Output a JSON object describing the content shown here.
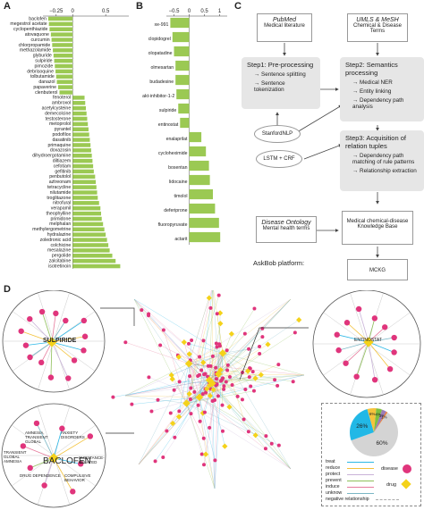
{
  "panels": {
    "a": "A",
    "b": "B",
    "c": "C",
    "d": "D"
  },
  "chart_data": [
    {
      "type": "bar",
      "orientation": "horizontal",
      "xlim": [
        -0.45,
        0.85
      ],
      "ticks": [
        -0.25,
        0,
        0.5
      ],
      "tick_labels": [
        "−0.25",
        "0",
        "0.5"
      ],
      "categories": [
        "baclofen",
        "megestrol acetate",
        "cyclopenthiazide",
        "atovaquone",
        "curcumin",
        "chlorpropamide",
        "methazolamide",
        "glyburide",
        "sulpiride",
        "pimozide",
        "debrisoquine",
        "tolbutamide",
        "danazol",
        "papaverine",
        "clenbuterol",
        "fenoterol",
        "ambroxol",
        "acetylcysteine",
        "demecolcine",
        "testosterone",
        "metoprolol",
        "pyrantel",
        "podofilox",
        "dasatinib",
        "primaquine",
        "doxazosin",
        "dihydroergotamine",
        "diltiazem",
        "cefotiam",
        "gefitinib",
        "penbutolol",
        "aztreonam",
        "tetracycline",
        "nilutamide",
        "troglitazone",
        "nitrofural",
        "verapamil",
        "theophylline",
        "primidone",
        "melphalan",
        "methylergometrine",
        "hydralazine",
        "zoledronic acid",
        "colchicine",
        "mesalazine",
        "pergolide",
        "zalcitabine",
        "isotretinoin"
      ],
      "values": [
        -0.37,
        -0.36,
        -0.35,
        -0.33,
        -0.32,
        -0.31,
        -0.3,
        -0.29,
        -0.28,
        -0.27,
        -0.26,
        -0.25,
        -0.24,
        -0.22,
        -0.2,
        0.18,
        0.19,
        0.2,
        0.21,
        0.22,
        0.23,
        0.24,
        0.25,
        0.26,
        0.27,
        0.28,
        0.29,
        0.3,
        0.31,
        0.32,
        0.34,
        0.35,
        0.36,
        0.37,
        0.38,
        0.4,
        0.42,
        0.43,
        0.44,
        0.46,
        0.48,
        0.5,
        0.52,
        0.54,
        0.56,
        0.6,
        0.65,
        0.72
      ],
      "bar_color": "#9bc953"
    },
    {
      "type": "bar",
      "orientation": "horizontal",
      "xlim": [
        -0.75,
        1.25
      ],
      "ticks": [
        -0.5,
        0,
        0.5,
        1
      ],
      "tick_labels": [
        "−0.5",
        "0",
        "0.5",
        "1"
      ],
      "categories": [
        "xe-991",
        "clopidogrel",
        "olopatadine",
        "olmesartan",
        "budadesine",
        "akt-inhibitor-1-2",
        "sulpiride",
        "entinostat",
        "enalaprilat",
        "cycloheximide",
        "bosentan",
        "lidocaine",
        "timolol",
        "deferiprone",
        "fluoropyruvate",
        "actarit"
      ],
      "values": [
        -0.62,
        -0.55,
        -0.5,
        -0.45,
        -0.45,
        -0.42,
        -0.36,
        -0.3,
        0.4,
        0.55,
        0.65,
        0.68,
        0.78,
        0.85,
        0.98,
        1.02
      ],
      "bar_color": "#9bc953"
    },
    {
      "type": "pie",
      "slices": [
        {
          "label": "60%",
          "value": 60,
          "color": "#d4d4d4"
        },
        {
          "label": "26%",
          "value": 26,
          "color": "#22b8e6"
        },
        {
          "label": "6%",
          "value": 6,
          "color": "#f6c33c"
        },
        {
          "label": "4%",
          "value": 4,
          "color": "#7fbf3f"
        },
        {
          "label": "3%",
          "value": 3,
          "color": "#9b7bb8"
        },
        {
          "label": "1%",
          "value": 1,
          "color": "#e77f3c"
        }
      ]
    }
  ],
  "pipeline": {
    "pubmed_title": "PubMed",
    "pubmed_sub": "Medical literature",
    "umls_title": "UMLS & MeSH",
    "umls_sub": "Chemical & Disease Terms",
    "step1_title": "Step1: Pre-processing",
    "step1_items": [
      "Sentence splitting",
      "Sentence tokenization"
    ],
    "step2_title": "Step2: Semantics processing",
    "step2_items": [
      "Medical NER",
      "Entity linking",
      "Dependency path analysis"
    ],
    "stanford": "StanfordNLP",
    "lstm": "LSTM + CRF",
    "step3_title": "Step3: Acquisition of relation tuples",
    "step3_items": [
      "Dependency path matching of rule patterns",
      "Relationship extraction"
    ],
    "ontology_title": "Disease Ontology",
    "ontology_sub": "Mental health terms",
    "kb": "Medical chemical-disease Knowledge Base",
    "askbob": "AskBob platform:",
    "mckg": "MCKG"
  },
  "network": {
    "sulpiride_label": "SULPIRIDE",
    "baclofen_label": "BACLOFEN",
    "right_label": "ENTINOSTAT",
    "baclofen_diseases": [
      "AMNESIA, TRANSIENT GLOBAL",
      "AMNESIA",
      "TRANSIENT GLOBAL AMNESIA",
      "ANXIETY DISORDERS",
      "DISORDERS",
      "SUBSTANCE-RELATED",
      "DRUG DEPENDENCE",
      "COMPULSIVE BEHAVIOR"
    ]
  },
  "legend": {
    "relations": [
      {
        "label": "treat",
        "color": "#2bb7e6"
      },
      {
        "label": "reduce",
        "color": "#f3c23a"
      },
      {
        "label": "protect",
        "color": "#c9b3d8"
      },
      {
        "label": "prevent",
        "color": "#8fbf5a"
      },
      {
        "label": "induce",
        "color": "#e67a9c"
      },
      {
        "label": "unknow",
        "color": "#7ab6c5"
      },
      {
        "label": "negative relationship",
        "color": "#aaaaaa"
      }
    ],
    "disease": "disease",
    "drug": "drug",
    "disease_color": "#e0357c",
    "drug_color": "#f4d21a"
  }
}
